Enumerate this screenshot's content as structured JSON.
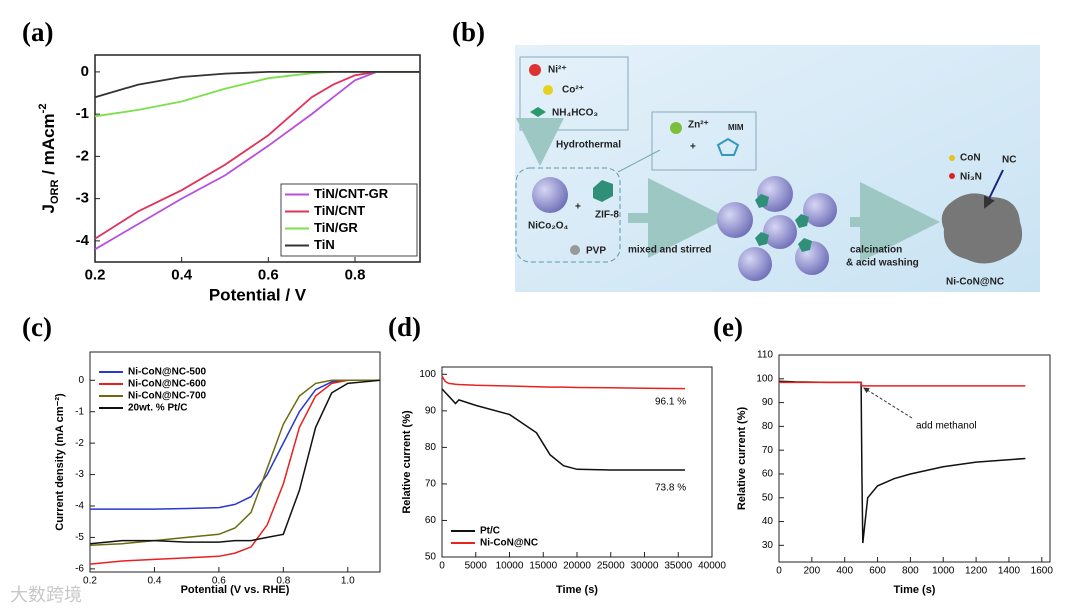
{
  "chart_data": [
    {
      "type": "line",
      "label": "(a)",
      "xlabel": "Potential / V",
      "ylabel": {
        "base": "J",
        "sub": "ORR",
        "unit": " / mAcm",
        "sup": "-2"
      },
      "xlim": [
        0.2,
        0.95
      ],
      "ylim": [
        -4.5,
        0.4
      ],
      "xticks": [
        0.2,
        0.4,
        0.6,
        0.8
      ],
      "yticks": [
        0,
        -1,
        -2,
        -3,
        -4
      ],
      "legend": "lower right",
      "x": [
        0.2,
        0.3,
        0.4,
        0.5,
        0.6,
        0.7,
        0.75,
        0.8,
        0.85,
        0.9,
        0.95
      ],
      "series": [
        {
          "name": "TiN/CNT-GR",
          "color": "#b84ee0",
          "values": [
            -4.2,
            -3.6,
            -3.0,
            -2.45,
            -1.75,
            -1.0,
            -0.6,
            -0.2,
            0,
            0,
            0
          ]
        },
        {
          "name": "TiN/CNT",
          "color": "#e0325a",
          "values": [
            -3.95,
            -3.3,
            -2.8,
            -2.2,
            -1.5,
            -0.6,
            -0.3,
            -0.08,
            0,
            0,
            0
          ]
        },
        {
          "name": "TiN/GR",
          "color": "#7de04a",
          "values": [
            -1.05,
            -0.9,
            -0.7,
            -0.4,
            -0.15,
            -0.03,
            0,
            0,
            0,
            0,
            0
          ]
        },
        {
          "name": "TiN",
          "color": "#333333",
          "values": [
            -0.6,
            -0.3,
            -0.12,
            -0.04,
            0,
            0,
            0,
            0,
            0,
            0,
            0
          ]
        }
      ]
    },
    {
      "type": "line",
      "label": "(c)",
      "xlabel": "Potential (V vs. RHE)",
      "ylabel": "Current density (mA cm⁻²)",
      "xlim": [
        0.2,
        1.1
      ],
      "ylim": [
        -6.1,
        0.9
      ],
      "xticks": [
        0.2,
        0.4,
        0.6,
        0.8,
        {
          "value": 1,
          "label": "1.0"
        }
      ],
      "yticks": [
        0,
        -1,
        -2,
        -3,
        -4,
        -5,
        -6
      ],
      "legend": "upper left",
      "x": [
        0.2,
        0.3,
        0.4,
        0.5,
        0.6,
        0.65,
        0.7,
        0.75,
        0.8,
        0.85,
        0.9,
        0.95,
        1.0,
        1.1
      ],
      "series": [
        {
          "name": "Ni-CoN@NC-500",
          "color": "#2838d0",
          "values": [
            -4.1,
            -4.1,
            -4.1,
            -4.08,
            -4.05,
            -3.95,
            -3.7,
            -3.0,
            -2.0,
            -1.0,
            -0.3,
            -0.05,
            0,
            0
          ]
        },
        {
          "name": "Ni-CoN@NC-600",
          "color": "#e82020",
          "values": [
            -5.85,
            -5.75,
            -5.7,
            -5.65,
            -5.6,
            -5.5,
            -5.3,
            -4.6,
            -3.3,
            -1.5,
            -0.5,
            -0.1,
            0,
            0
          ]
        },
        {
          "name": "Ni-CoN@NC-700",
          "color": "#6b6b10",
          "values": [
            -5.25,
            -5.2,
            -5.1,
            -5.0,
            -4.9,
            -4.7,
            -4.2,
            -2.8,
            -1.4,
            -0.5,
            -0.1,
            0,
            0,
            0
          ]
        },
        {
          "name": "20wt. % Pt/C",
          "color": "#111111",
          "values": [
            -5.2,
            -5.1,
            -5.1,
            -5.15,
            -5.15,
            -5.1,
            -5.1,
            -5.0,
            -4.9,
            -3.5,
            -1.5,
            -0.4,
            -0.1,
            0
          ]
        }
      ]
    },
    {
      "type": "line",
      "label": "(d)",
      "xlabel": "Time (s)",
      "ylabel": "Relative current (%)",
      "xlim": [
        0,
        40000
      ],
      "ylim": [
        50,
        102
      ],
      "xticks": [
        0,
        5000,
        10000,
        15000,
        20000,
        25000,
        30000,
        35000,
        40000
      ],
      "yticks": [
        50,
        60,
        70,
        80,
        90,
        100
      ],
      "legend": "lower left",
      "x": [
        0,
        500,
        1000,
        2000,
        2500,
        5000,
        10000,
        14000,
        16000,
        18000,
        20000,
        25000,
        30000,
        36000
      ],
      "series": [
        {
          "name": "Pt/C",
          "color": "#111111",
          "values": [
            96,
            95,
            94,
            92,
            93,
            91.5,
            89,
            84,
            78,
            75,
            74,
            73.8,
            73.8,
            73.8
          ]
        },
        {
          "name": "Ni-CoN@NC",
          "color": "#e8231f",
          "values": [
            99.5,
            98,
            97.5,
            97.3,
            97.2,
            97,
            96.8,
            96.6,
            96.5,
            96.5,
            96.4,
            96.3,
            96.2,
            96.1
          ]
        }
      ],
      "annotations": [
        "96.1 %",
        "73.8 %"
      ]
    },
    {
      "type": "line",
      "label": "(e)",
      "xlabel": "Time (s)",
      "ylabel": "Relative current (%)",
      "xlim": [
        0,
        1650
      ],
      "ylim": [
        23,
        110
      ],
      "xticks": [
        0,
        200,
        400,
        600,
        800,
        1000,
        1200,
        1400,
        1600
      ],
      "yticks": [
        30,
        40,
        50,
        60,
        70,
        80,
        90,
        100,
        110
      ],
      "x": [
        0,
        100,
        200,
        300,
        400,
        500,
        505,
        510,
        540,
        600,
        700,
        800,
        1000,
        1200,
        1500
      ],
      "series": [
        {
          "color": "#111111",
          "values": [
            99,
            98.7,
            98.6,
            98.5,
            98.5,
            98.5,
            60,
            31,
            50,
            55,
            58,
            60,
            63,
            65,
            66.5
          ]
        },
        {
          "color": "#e8231f",
          "values": [
            98.5,
            98.5,
            98.5,
            98.5,
            98.5,
            98.5,
            97,
            97,
            97,
            97,
            97,
            97,
            97,
            97,
            97
          ]
        }
      ],
      "annotations": [
        "add methanol"
      ]
    }
  ],
  "figure_b": {
    "label": "(b)",
    "reagents": [
      "Ni²⁺",
      "Co²⁺",
      "NH₄HCO₃"
    ],
    "step1": "Hydrothermal",
    "additives": [
      "Zn²⁺",
      "MIM"
    ],
    "precursor": "NiCo₂O₄",
    "template": "ZIF-8",
    "surfactant": "PVP",
    "step2": "mixed and stirred",
    "step3": [
      "calcination",
      "& acid washing"
    ],
    "components": [
      "CoN",
      "Ni₃N",
      "NC"
    ],
    "product": "Ni-CoN@NC"
  },
  "watermark": "大数跨境"
}
